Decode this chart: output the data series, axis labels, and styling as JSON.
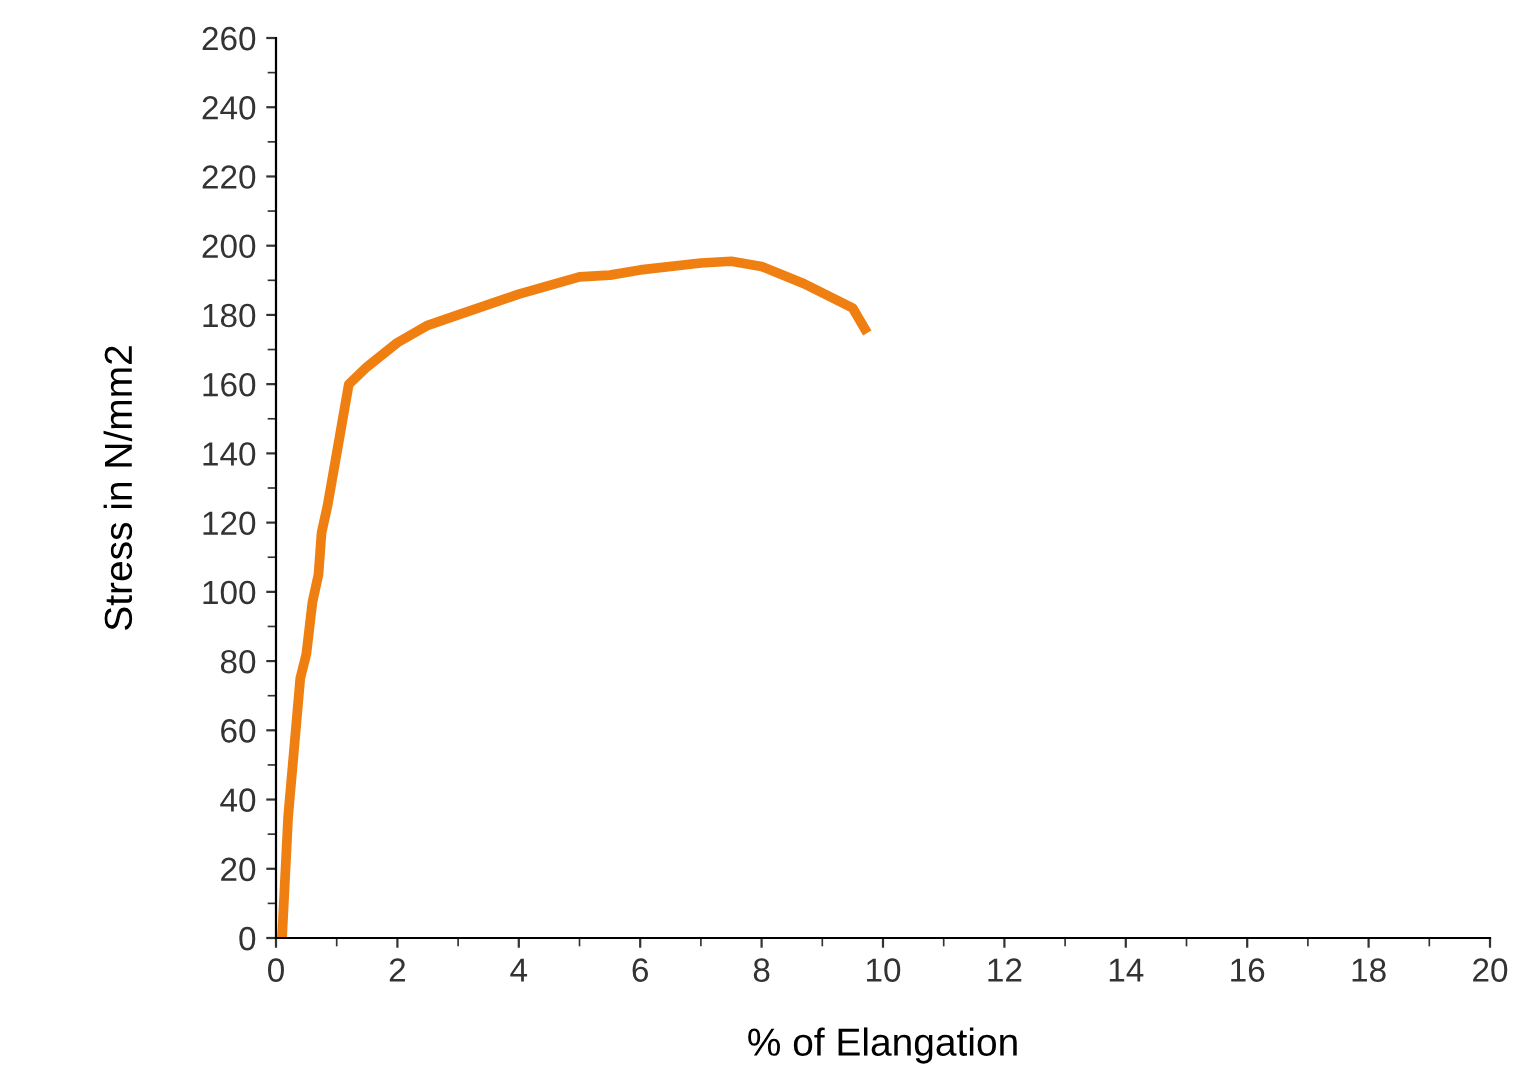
{
  "chart_data": {
    "type": "line",
    "xlabel": "% of Elangation",
    "ylabel": "Stress in N/mm2",
    "series": [
      {
        "color": "#f07f12",
        "x": [
          0.1,
          0.2,
          0.3,
          0.4,
          0.5,
          0.6,
          0.7,
          0.75,
          0.85,
          1.0,
          1.2,
          1.5,
          2.0,
          2.5,
          3.0,
          4.0,
          5.0,
          5.5,
          6.0,
          7.0,
          7.5,
          8.0,
          8.7,
          9.5,
          9.7
        ],
        "values": [
          0,
          35,
          55,
          75,
          82,
          97,
          105,
          117,
          125,
          140,
          160,
          165,
          172,
          177,
          180,
          186,
          191,
          191.5,
          193,
          195,
          195.5,
          194,
          189,
          182,
          176
        ]
      }
    ],
    "xlim": [
      0,
      20
    ],
    "xticks": [
      0,
      2,
      4,
      6,
      8,
      10,
      12,
      14,
      16,
      18,
      20
    ],
    "ylim": [
      0,
      260
    ],
    "yticks": [
      0,
      20,
      40,
      60,
      80,
      100,
      120,
      140,
      160,
      180,
      200,
      220,
      240,
      260
    ],
    "grid": false,
    "marker": "none",
    "line_style": "solid"
  }
}
